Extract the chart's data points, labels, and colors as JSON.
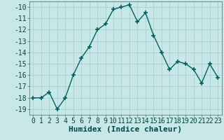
{
  "x": [
    0,
    1,
    2,
    3,
    4,
    5,
    6,
    7,
    8,
    9,
    10,
    11,
    12,
    13,
    14,
    15,
    16,
    17,
    18,
    19,
    20,
    21,
    22,
    23
  ],
  "y": [
    -18,
    -18,
    -17.5,
    -19,
    -18,
    -16,
    -14.5,
    -13.5,
    -12,
    -11.5,
    -10.2,
    -10,
    -9.8,
    -11.3,
    -10.5,
    -12.5,
    -14,
    -15.5,
    -14.8,
    -15,
    -15.5,
    -16.7,
    -15,
    -16.2
  ],
  "line_color": "#006060",
  "marker": "+",
  "marker_color": "#006060",
  "bg_color": "#c8e8e8",
  "grid_color": "#a0cccc",
  "xlabel": "Humidex (Indice chaleur)",
  "ylim": [
    -19.5,
    -9.5
  ],
  "xlim": [
    -0.5,
    23.5
  ],
  "yticks": [
    -19,
    -18,
    -17,
    -16,
    -15,
    -14,
    -13,
    -12,
    -11,
    -10
  ],
  "xticks": [
    0,
    1,
    2,
    3,
    4,
    5,
    6,
    7,
    8,
    9,
    10,
    11,
    12,
    13,
    14,
    15,
    16,
    17,
    18,
    19,
    20,
    21,
    22,
    23
  ],
  "xlabel_fontsize": 8,
  "tick_fontsize": 7,
  "linewidth": 1.0,
  "markersize": 4
}
